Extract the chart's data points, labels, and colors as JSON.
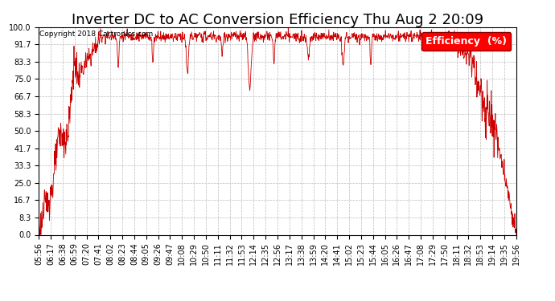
{
  "title": "Inverter DC to AC Conversion Efficiency Thu Aug 2 20:09",
  "copyright": "Copyright 2018 Cartronics.com",
  "legend_label": "Efficiency  (%)",
  "line_color": "#cc0000",
  "background_color": "#ffffff",
  "grid_color": "#bbbbbb",
  "ylim": [
    0.0,
    100.0
  ],
  "yticks": [
    0.0,
    8.3,
    16.7,
    25.0,
    33.3,
    41.7,
    50.0,
    58.3,
    66.7,
    75.0,
    83.3,
    91.7,
    100.0
  ],
  "xtick_labels": [
    "05:56",
    "06:17",
    "06:38",
    "06:59",
    "07:20",
    "07:41",
    "08:02",
    "08:23",
    "08:44",
    "09:05",
    "09:26",
    "09:47",
    "10:08",
    "10:29",
    "10:50",
    "11:11",
    "11:32",
    "11:53",
    "12:14",
    "12:35",
    "12:56",
    "13:17",
    "13:38",
    "13:59",
    "14:20",
    "14:41",
    "15:02",
    "15:23",
    "15:44",
    "16:05",
    "16:26",
    "16:47",
    "17:08",
    "17:29",
    "17:50",
    "18:11",
    "18:32",
    "18:53",
    "19:14",
    "19:35",
    "19:56"
  ],
  "title_fontsize": 13,
  "tick_fontsize": 7,
  "legend_fontsize": 9
}
